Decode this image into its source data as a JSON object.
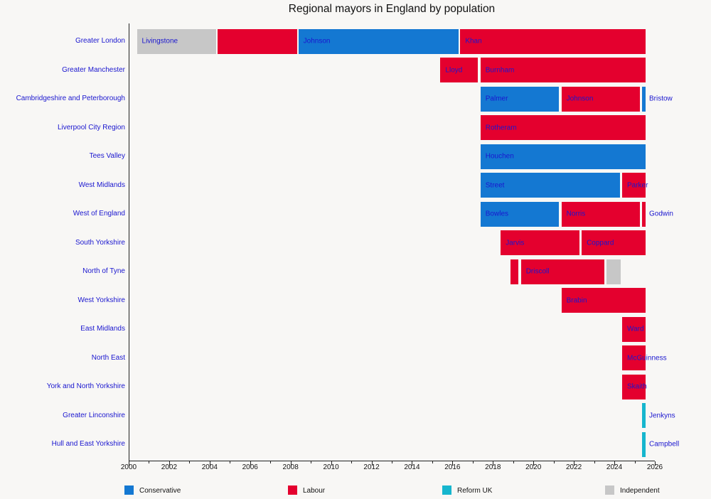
{
  "title": "Regional mayors in England by population",
  "party_colors": {
    "Conservative": "#1478d2",
    "Labour": "#e4002e",
    "Reform UK": "#16b6ce",
    "Independent": "#c7c7c7"
  },
  "legend": [
    {
      "label": "Conservative",
      "party": "Conservative"
    },
    {
      "label": "Labour",
      "party": "Labour"
    },
    {
      "label": "Reform UK",
      "party": "Reform UK"
    },
    {
      "label": "Independent",
      "party": "Independent"
    }
  ],
  "chart_data": {
    "type": "bar",
    "subtype": "timeline-gantt",
    "title": "Regional mayors in England by population",
    "xlabel": "",
    "ylabel": "",
    "x_axis": {
      "min": 2000,
      "max": 2026,
      "major_tick_step": 2,
      "minor_tick_step": 1,
      "tick_labels": [
        "2000",
        "2002",
        "2004",
        "2006",
        "2008",
        "2010",
        "2012",
        "2014",
        "2016",
        "2018",
        "2020",
        "2022",
        "2024",
        "2026"
      ],
      "end_of_data": 2025.58
    },
    "legend_position": "bottom",
    "grid": false,
    "rows": [
      {
        "region": "Greater London",
        "segments": [
          {
            "label": "Livingstone",
            "party": "Independent",
            "start": 2000.37,
            "end": 2004.37
          },
          {
            "label": "",
            "party": "Labour",
            "start": 2004.37,
            "end": 2008.35
          },
          {
            "label": "Johnson",
            "party": "Conservative",
            "start": 2008.35,
            "end": 2016.35
          },
          {
            "label": "Khan",
            "party": "Labour",
            "start": 2016.35,
            "end": 2025.58
          }
        ]
      },
      {
        "region": "Greater Manchester",
        "segments": [
          {
            "label": "Lloyd",
            "party": "Labour",
            "start": 2015.37,
            "end": 2017.3
          },
          {
            "label": "Burnham",
            "party": "Labour",
            "start": 2017.35,
            "end": 2025.58
          }
        ]
      },
      {
        "region": "Cambridgeshire and Peterborough",
        "segments": [
          {
            "label": "Palmer",
            "party": "Conservative",
            "start": 2017.35,
            "end": 2021.3
          },
          {
            "label": "Johnson",
            "party": "Labour",
            "start": 2021.35,
            "end": 2025.3
          },
          {
            "label": "Bristow",
            "party": "Conservative",
            "start": 2025.35,
            "end": 2025.58,
            "label_outside": true
          }
        ]
      },
      {
        "region": "Liverpool City Region",
        "segments": [
          {
            "label": "Rotheram",
            "party": "Labour",
            "start": 2017.35,
            "end": 2025.58
          }
        ]
      },
      {
        "region": "Tees Valley",
        "segments": [
          {
            "label": "Houchen",
            "party": "Conservative",
            "start": 2017.35,
            "end": 2025.58
          }
        ]
      },
      {
        "region": "West Midlands",
        "segments": [
          {
            "label": "Street",
            "party": "Conservative",
            "start": 2017.35,
            "end": 2024.3
          },
          {
            "label": "Parker",
            "party": "Labour",
            "start": 2024.35,
            "end": 2025.58
          }
        ]
      },
      {
        "region": "West of England",
        "segments": [
          {
            "label": "Bowles",
            "party": "Conservative",
            "start": 2017.35,
            "end": 2021.3
          },
          {
            "label": "Norris",
            "party": "Labour",
            "start": 2021.35,
            "end": 2025.3
          },
          {
            "label": "Godwin",
            "party": "Labour",
            "start": 2025.35,
            "end": 2025.58,
            "label_outside": true
          }
        ]
      },
      {
        "region": "South Yorkshire",
        "segments": [
          {
            "label": "Jarvis",
            "party": "Labour",
            "start": 2018.35,
            "end": 2022.3
          },
          {
            "label": "Coppard",
            "party": "Labour",
            "start": 2022.35,
            "end": 2025.58
          }
        ]
      },
      {
        "region": "North of Tyne",
        "segments": [
          {
            "label": "",
            "party": "Labour",
            "start": 2018.85,
            "end": 2019.3
          },
          {
            "label": "Driscoll",
            "party": "Labour",
            "start": 2019.35,
            "end": 2023.55
          },
          {
            "label": "",
            "party": "Independent",
            "start": 2023.57,
            "end": 2024.35
          }
        ]
      },
      {
        "region": "West Yorkshire",
        "segments": [
          {
            "label": "Brabin",
            "party": "Labour",
            "start": 2021.35,
            "end": 2025.58
          }
        ]
      },
      {
        "region": "East Midlands",
        "segments": [
          {
            "label": "Ward",
            "party": "Labour",
            "start": 2024.35,
            "end": 2025.58
          }
        ]
      },
      {
        "region": "North East",
        "segments": [
          {
            "label": "McGuinness",
            "party": "Labour",
            "start": 2024.35,
            "end": 2025.58
          }
        ]
      },
      {
        "region": "York and North Yorkshire",
        "segments": [
          {
            "label": "Skaith",
            "party": "Labour",
            "start": 2024.35,
            "end": 2025.58
          }
        ]
      },
      {
        "region": "Greater Linconshire",
        "segments": [
          {
            "label": "Jenkyns",
            "party": "Reform UK",
            "start": 2025.35,
            "end": 2025.58,
            "label_outside": true
          }
        ]
      },
      {
        "region": "Hull and East Yorkshire",
        "segments": [
          {
            "label": "Campbell",
            "party": "Reform UK",
            "start": 2025.35,
            "end": 2025.58,
            "label_outside": true
          }
        ]
      }
    ]
  }
}
